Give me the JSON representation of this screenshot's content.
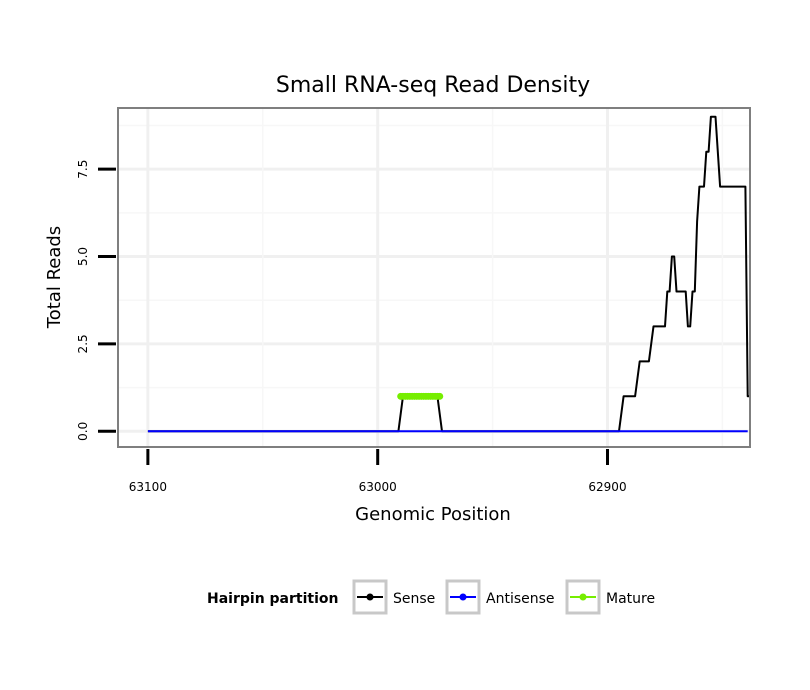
{
  "chart_data": {
    "type": "line",
    "title": "Small RNA-seq Read Density",
    "xlabel": "Genomic Position",
    "ylabel": "Total Reads",
    "x_reversed": true,
    "xlim": [
      63113,
      62838
    ],
    "ylim": [
      -0.45,
      9.25
    ],
    "x_ticks": [
      63100,
      63000,
      62900
    ],
    "x_tick_labels": [
      "63100",
      "63000",
      "62900"
    ],
    "y_ticks": [
      0.0,
      2.5,
      5.0,
      7.5
    ],
    "y_tick_labels": [
      "0.0",
      "2.5",
      "5.0",
      "7.5"
    ],
    "grid": true,
    "legend": {
      "title": "Hairpin partition",
      "position": "bottom",
      "entries": [
        {
          "label": "Sense",
          "color": "#000000"
        },
        {
          "label": "Antisense",
          "color": "#0000ff"
        },
        {
          "label": "Mature",
          "color": "#76ee00"
        }
      ]
    },
    "series": [
      {
        "name": "Sense",
        "color": "#000000",
        "points": [
          [
            63100,
            0
          ],
          [
            62991,
            0
          ],
          [
            62989,
            1
          ],
          [
            62974,
            1
          ],
          [
            62972,
            0
          ],
          [
            62895,
            0
          ],
          [
            62893,
            1
          ],
          [
            62888,
            1
          ],
          [
            62886,
            2
          ],
          [
            62882,
            2
          ],
          [
            62880,
            3
          ],
          [
            62875,
            3
          ],
          [
            62874,
            4
          ],
          [
            62873,
            4
          ],
          [
            62872,
            5
          ],
          [
            62871,
            5
          ],
          [
            62870,
            4
          ],
          [
            62866,
            4
          ],
          [
            62865,
            3
          ],
          [
            62864,
            3
          ],
          [
            62863,
            4
          ],
          [
            62862,
            4
          ],
          [
            62861,
            6
          ],
          [
            62860,
            7
          ],
          [
            62858,
            7
          ],
          [
            62857,
            8
          ],
          [
            62856,
            8
          ],
          [
            62855,
            9
          ],
          [
            62853,
            9
          ],
          [
            62851,
            7
          ],
          [
            62840,
            7
          ],
          [
            62839,
            1
          ],
          [
            62838,
            1
          ]
        ]
      },
      {
        "name": "Antisense",
        "color": "#0000ff",
        "points": [
          [
            63100,
            0
          ],
          [
            62839,
            0
          ]
        ]
      },
      {
        "name": "Mature",
        "color": "#76ee00",
        "points": [
          [
            62990,
            1
          ],
          [
            62973,
            1
          ]
        ]
      }
    ]
  }
}
